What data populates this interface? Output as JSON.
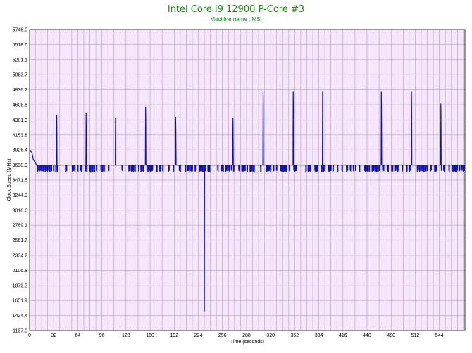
{
  "chart_data": {
    "type": "line",
    "title": "Intel Core i9 12900 P-Core #3",
    "subtitle": "Machine name : MSI",
    "xlabel": "Time (seconds)",
    "ylabel": "Clock Speed (MHz)",
    "xlim": [
      0,
      578
    ],
    "ylim": [
      1197.0,
      5746.0
    ],
    "x_ticks": [
      "0",
      "32",
      "64",
      "96",
      "128",
      "160",
      "192",
      "224",
      "256",
      "288",
      "320",
      "352",
      "384",
      "416",
      "448",
      "480",
      "512",
      "544"
    ],
    "y_ticks": [
      "5746.0",
      "5518.6",
      "5291.1",
      "5063.7",
      "4836.2",
      "4608.8",
      "4381.3",
      "4153.8",
      "3926.4",
      "3698.9",
      "3471.5",
      "3244.0",
      "3016.6",
      "2789.1",
      "2561.7",
      "2334.2",
      "2106.8",
      "1879.3",
      "1651.9",
      "1424.4",
      "1197.0"
    ],
    "grid": true,
    "colors": {
      "background": "#f6e6fb",
      "grid": "#b4a0bc",
      "line": "#1010b8",
      "title": "#1e8a1e"
    },
    "series": [
      {
        "baseline": 3698.9,
        "low": 3600.0,
        "start": [
          [
            0,
            3920
          ],
          [
            3,
            3890
          ],
          [
            5,
            3780
          ],
          [
            8,
            3730
          ]
        ],
        "spikes": [
          [
            36,
            4450
          ],
          [
            75,
            4480
          ],
          [
            114,
            4400
          ],
          [
            154,
            4570
          ],
          [
            194,
            4420
          ],
          [
            270,
            4400
          ],
          [
            310,
            4800
          ],
          [
            350,
            4800
          ],
          [
            389,
            4800
          ],
          [
            467,
            4800
          ],
          [
            507,
            4800
          ],
          [
            546,
            4620
          ]
        ],
        "dip": [
          232,
          1490
        ],
        "end": 578
      }
    ]
  }
}
